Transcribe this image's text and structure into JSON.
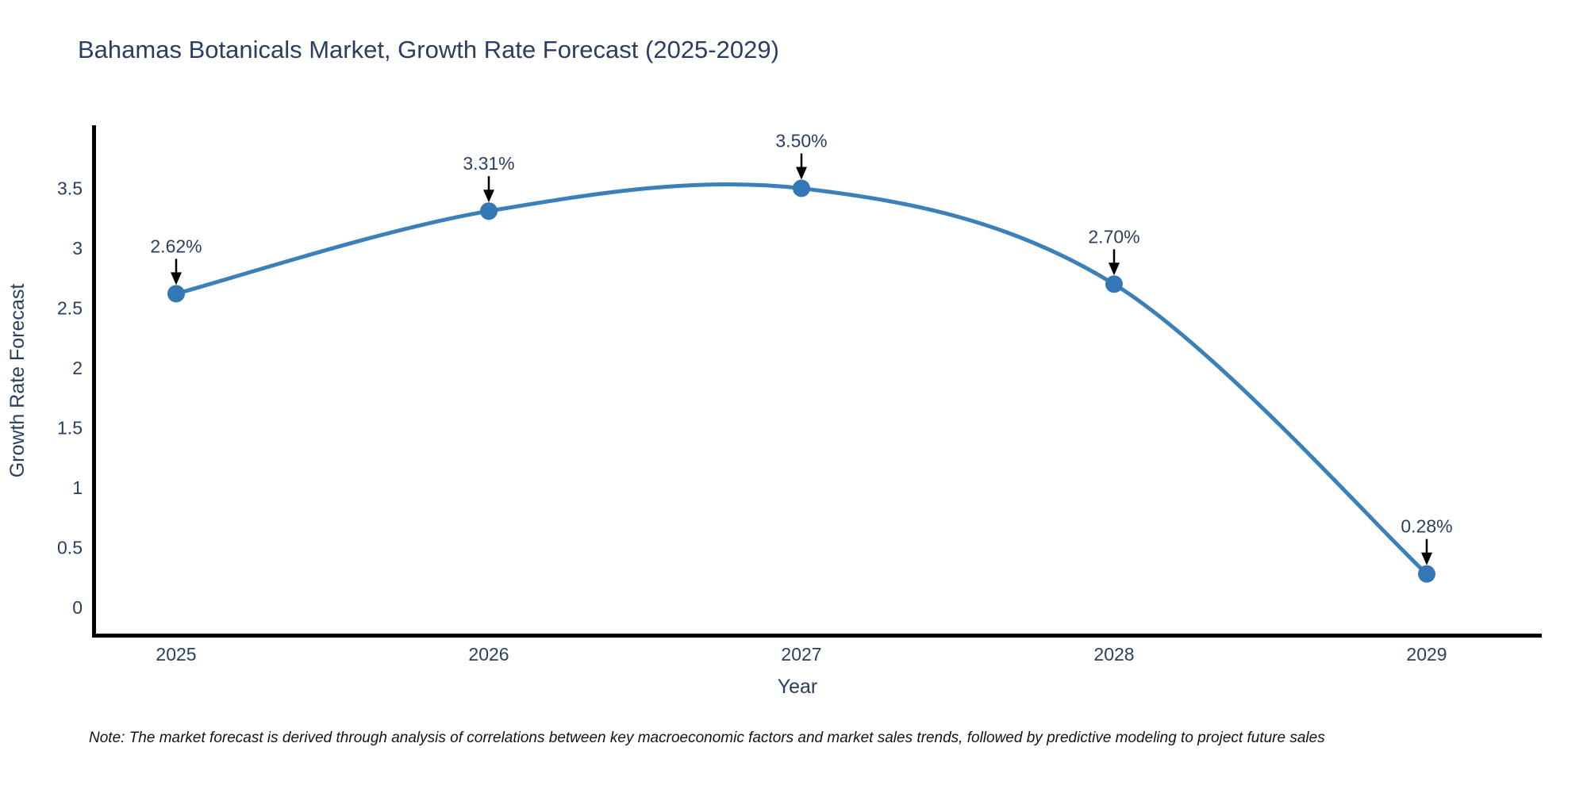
{
  "title": "Bahamas Botanicals Market, Growth Rate Forecast (2025-2029)",
  "note": "Note: The market forecast is derived through analysis of correlations between key macroeconomic factors and market sales trends, followed by predictive modeling to project future sales",
  "chart_data": {
    "type": "line",
    "title": "Bahamas Botanicals Market, Growth Rate Forecast (2025-2029)",
    "categories": [
      "2025",
      "2026",
      "2027",
      "2028",
      "2029"
    ],
    "series": [
      {
        "name": "Growth Rate Forecast",
        "values": [
          2.62,
          3.31,
          3.5,
          2.7,
          0.28
        ]
      }
    ],
    "data_labels": [
      "2.62%",
      "3.31%",
      "3.50%",
      "2.70%",
      "0.28%"
    ],
    "xlabel": "Year",
    "ylabel": "Growth Rate Forecast",
    "yticks": [
      0,
      0.5,
      1,
      1.5,
      2,
      2.5,
      3,
      3.5
    ],
    "ylim": [
      -0.25,
      4.05
    ],
    "grid": false,
    "legend": "none",
    "line_shape": "spline",
    "line_color": "#3c80ba",
    "marker_color": "#3377b5",
    "axis_line_color": "#000000",
    "tick_label_color": "#2a3f5f",
    "annotation_text_color": "#2a3f5f",
    "annotation_arrow_color": "#000000"
  }
}
